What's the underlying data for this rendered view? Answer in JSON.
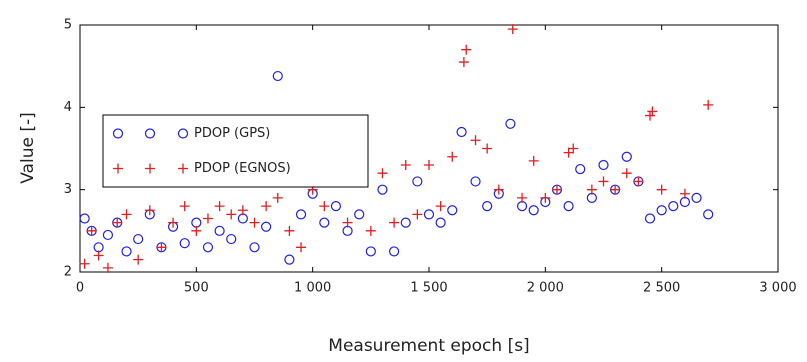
{
  "chart_data": {
    "type": "scatter",
    "xlabel": "Measurement epoch [s]",
    "ylabel": "Value [-]",
    "xlim": [
      0,
      3000
    ],
    "ylim": [
      2,
      5
    ],
    "xticks": [
      0,
      500,
      {
        "value": 1000,
        "label": "1 000"
      },
      {
        "value": 1500,
        "label": "1 500"
      },
      {
        "value": 2000,
        "label": "2 000"
      },
      {
        "value": 2500,
        "label": "2 500"
      },
      {
        "value": 3000,
        "label": "3 000"
      }
    ],
    "yticks": [
      2,
      3,
      4,
      5
    ],
    "legend": "upper left",
    "series": [
      {
        "name": "PDOP (GPS)",
        "color": "#1f1fe0",
        "marker": "circle",
        "x": [
          20,
          50,
          80,
          120,
          160,
          200,
          250,
          300,
          350,
          400,
          450,
          500,
          550,
          600,
          650,
          700,
          750,
          800,
          850,
          900,
          950,
          1000,
          1050,
          1100,
          1150,
          1200,
          1250,
          1300,
          1350,
          1400,
          1450,
          1500,
          1550,
          1600,
          1640,
          1700,
          1750,
          1800,
          1850,
          1900,
          1950,
          2000,
          2050,
          2100,
          2150,
          2200,
          2250,
          2300,
          2350,
          2400,
          2450,
          2500,
          2550,
          2600,
          2650,
          2700
        ],
        "values": [
          2.65,
          2.5,
          2.3,
          2.45,
          2.6,
          2.25,
          2.4,
          2.7,
          2.3,
          2.55,
          2.35,
          2.6,
          2.3,
          2.5,
          2.4,
          2.65,
          2.3,
          2.55,
          4.38,
          2.15,
          2.7,
          2.95,
          2.6,
          2.8,
          2.5,
          2.7,
          2.25,
          3.0,
          2.25,
          2.6,
          3.1,
          2.7,
          2.6,
          2.75,
          3.7,
          3.1,
          2.8,
          2.95,
          3.8,
          2.8,
          2.75,
          2.85,
          3.0,
          2.8,
          3.25,
          2.9,
          3.3,
          3.0,
          3.4,
          3.1,
          2.65,
          2.75,
          2.8,
          2.85,
          2.9,
          2.7
        ]
      },
      {
        "name": "PDOP (EGNOS)",
        "color": "#e01f1f",
        "marker": "plus",
        "x": [
          20,
          50,
          80,
          120,
          160,
          200,
          250,
          300,
          350,
          400,
          450,
          500,
          550,
          600,
          650,
          700,
          750,
          800,
          850,
          900,
          950,
          1000,
          1050,
          1100,
          1150,
          1200,
          1250,
          1300,
          1350,
          1400,
          1450,
          1500,
          1550,
          1600,
          1650,
          1660,
          1700,
          1750,
          1800,
          1860,
          1900,
          1950,
          2000,
          2050,
          2100,
          2120,
          2200,
          2250,
          2300,
          2350,
          2400,
          2450,
          2460,
          2500,
          2600,
          2700
        ],
        "values": [
          2.1,
          2.5,
          2.2,
          2.05,
          2.6,
          2.7,
          2.15,
          2.75,
          2.3,
          2.6,
          2.8,
          2.5,
          2.65,
          2.8,
          2.7,
          2.75,
          2.6,
          2.8,
          2.9,
          2.5,
          2.3,
          3.0,
          2.8,
          3.2,
          2.6,
          3.25,
          2.5,
          3.2,
          2.6,
          3.3,
          2.7,
          3.3,
          2.8,
          3.4,
          4.55,
          4.7,
          3.6,
          3.5,
          3.0,
          4.95,
          2.9,
          3.35,
          2.9,
          3.0,
          3.45,
          3.5,
          3.0,
          3.1,
          3.0,
          3.2,
          3.1,
          3.9,
          3.95,
          3.0,
          2.95,
          4.03
        ]
      }
    ]
  }
}
